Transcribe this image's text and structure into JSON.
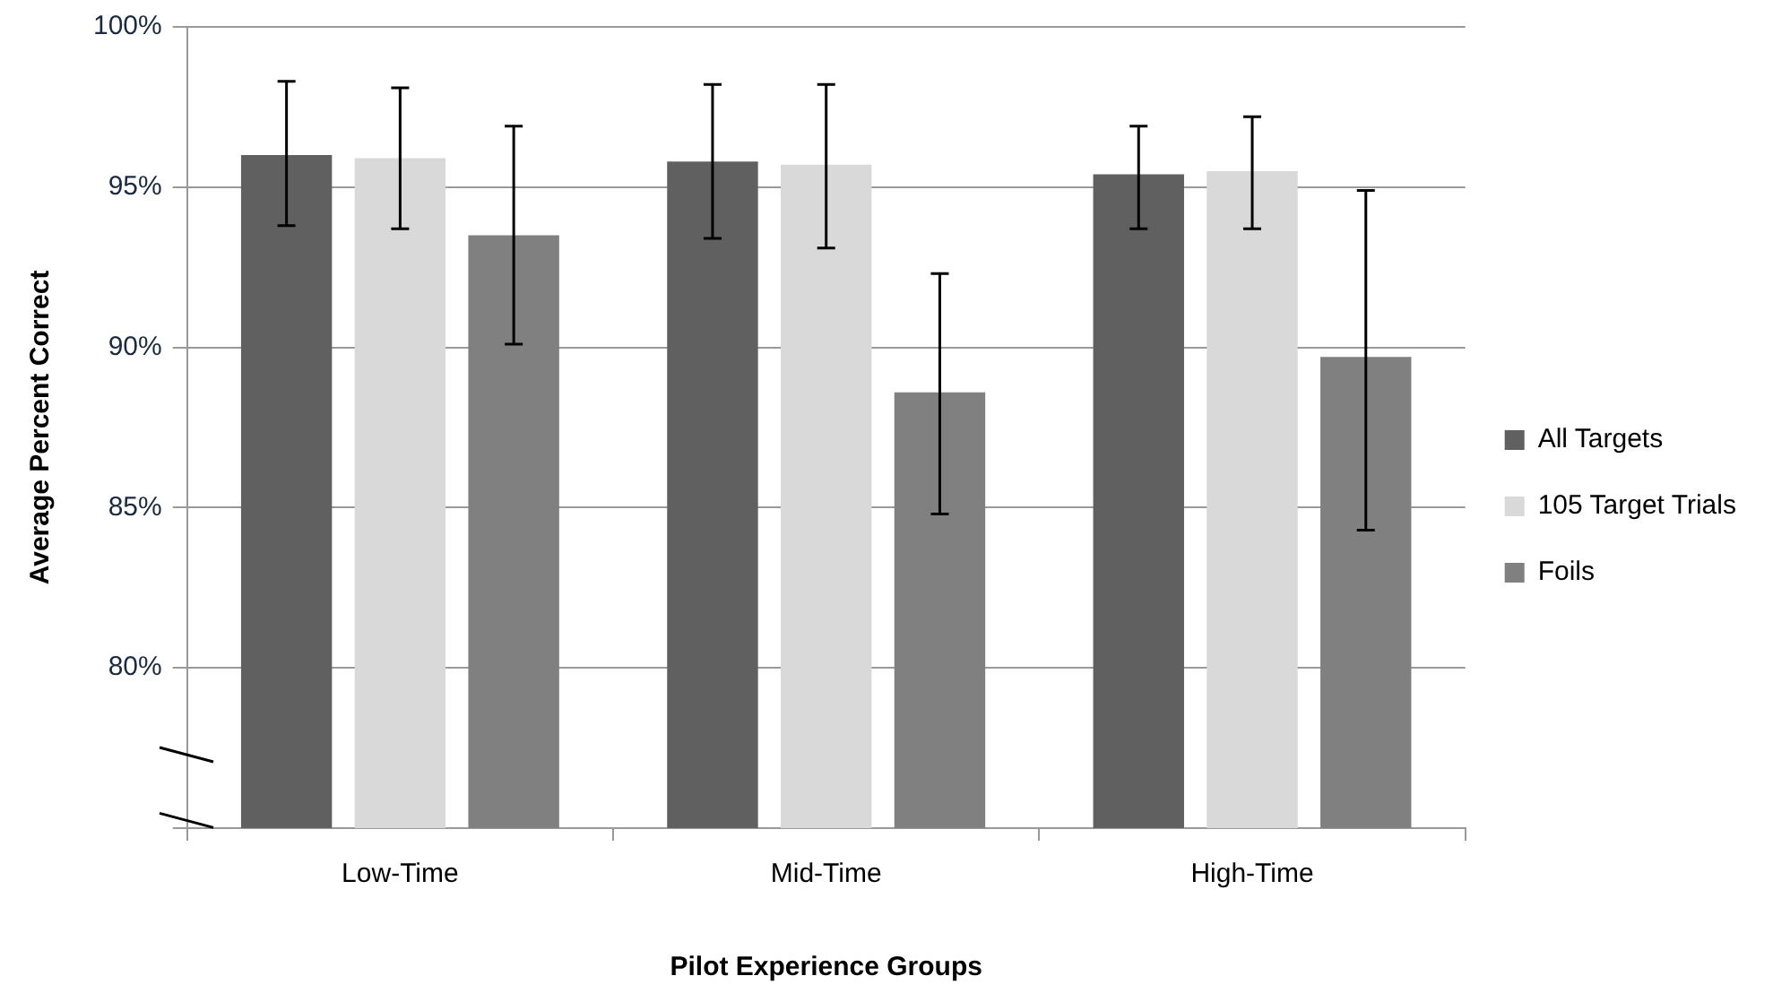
{
  "chart_data": {
    "type": "bar",
    "xlabel": "Pilot Experience Groups",
    "ylabel": "Average Percent Correct",
    "categories": [
      "Low-Time",
      "Mid-Time",
      "High-Time"
    ],
    "series": [
      {
        "name": "All Targets",
        "color": "#606060",
        "values": [
          96.0,
          95.8,
          95.4
        ],
        "errors": [
          [
            93.8,
            98.3
          ],
          [
            93.4,
            98.2
          ],
          [
            93.7,
            96.9
          ]
        ]
      },
      {
        "name": "105 Target Trials",
        "color": "#d9d9d9",
        "values": [
          95.9,
          95.7,
          95.5
        ],
        "errors": [
          [
            93.7,
            98.1
          ],
          [
            93.1,
            98.2
          ],
          [
            93.7,
            97.2
          ]
        ]
      },
      {
        "name": "Foils",
        "color": "#808080",
        "values": [
          93.5,
          88.6,
          89.7
        ],
        "errors": [
          [
            90.1,
            96.9
          ],
          [
            84.8,
            92.3
          ],
          [
            84.3,
            94.9
          ]
        ]
      }
    ],
    "ylim": [
      75,
      100
    ],
    "yticks": [
      {
        "value": 75,
        "label": null
      },
      {
        "value": 80,
        "label": "80%"
      },
      {
        "value": 85,
        "label": "85%"
      },
      {
        "value": 90,
        "label": "90%"
      },
      {
        "value": 95,
        "label": "95%"
      },
      {
        "value": 100,
        "label": "100%"
      }
    ],
    "grid": "y",
    "legend": "right"
  }
}
